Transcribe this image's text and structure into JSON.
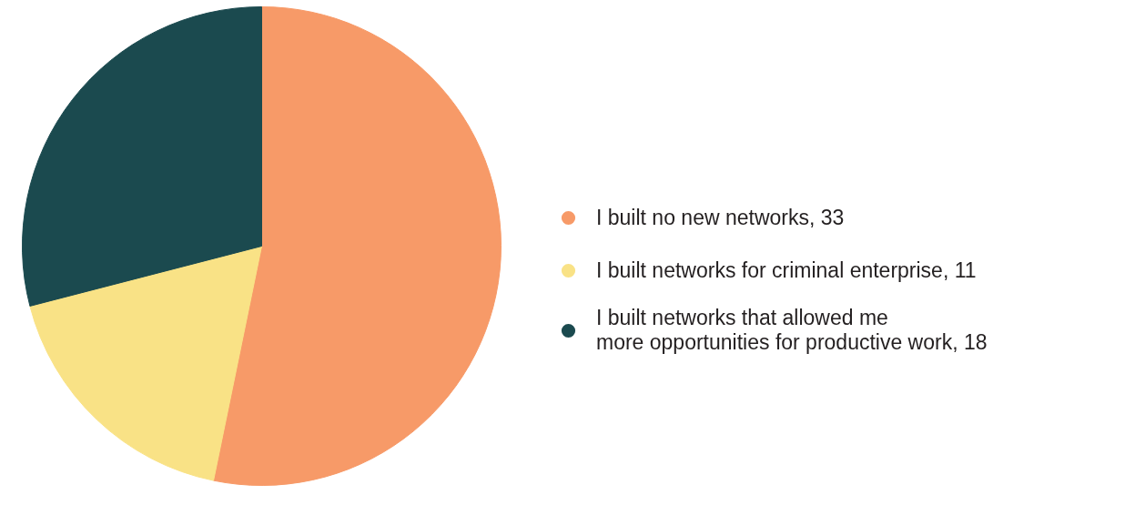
{
  "chart_data": {
    "type": "pie",
    "categories": [
      "I built no new networks, 33",
      "I built networks for criminal enterprise, 11",
      "I built networks that allowed me\nmore opportunities for productive work, 18"
    ],
    "values": [
      33,
      11,
      18
    ],
    "colors": [
      "#f79a68",
      "#f9e286",
      "#1b4a4f"
    ],
    "legend": "right"
  }
}
